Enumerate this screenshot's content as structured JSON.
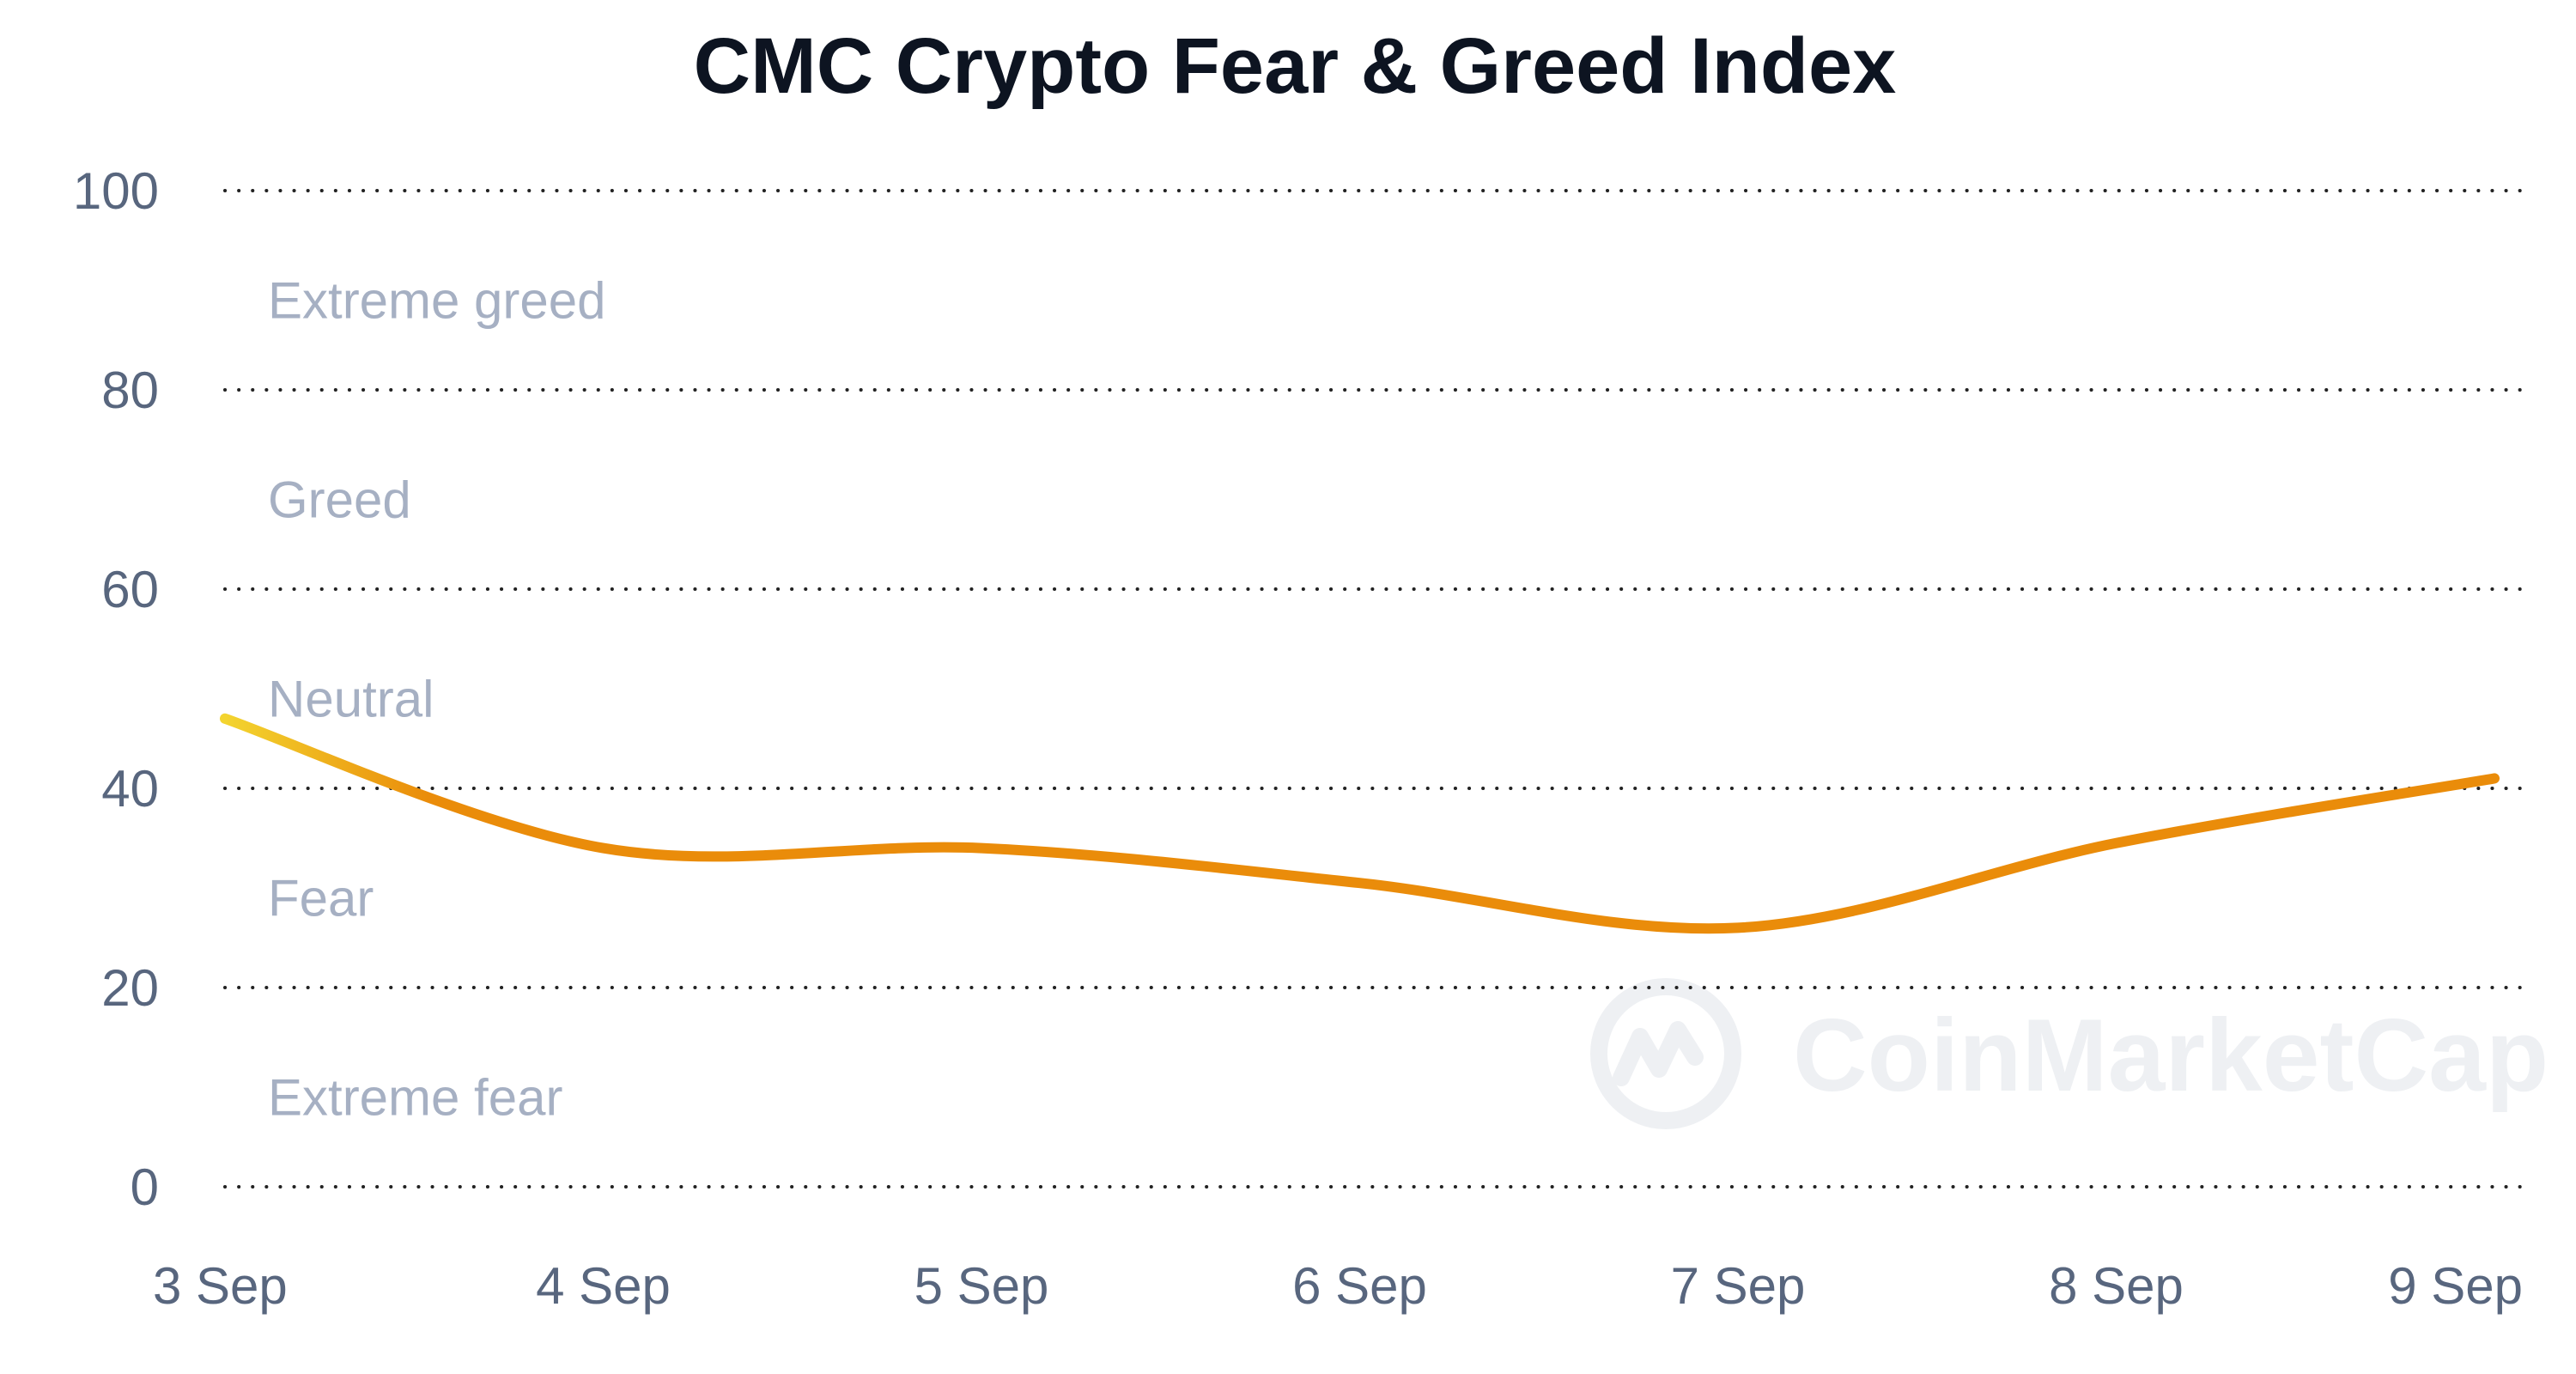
{
  "chart_data": {
    "type": "line",
    "title": "CMC Crypto Fear & Greed Index",
    "xlabel": "",
    "ylabel": "",
    "ylim": [
      0,
      100
    ],
    "y_ticks": [
      "100",
      "80",
      "60",
      "40",
      "20",
      "0"
    ],
    "y_tick_values": [
      100,
      80,
      60,
      40,
      20,
      0
    ],
    "x_ticks": [
      "3 Sep",
      "4 Sep",
      "5 Sep",
      "6 Sep",
      "7 Sep",
      "8 Sep",
      "9 Sep"
    ],
    "x_tick_values": [
      0,
      1,
      2,
      3,
      4,
      5,
      6
    ],
    "zones": [
      {
        "label": "Extreme greed",
        "y": 89
      },
      {
        "label": "Greed",
        "y": 69
      },
      {
        "label": "Neutral",
        "y": 49
      },
      {
        "label": "Fear",
        "y": 29
      },
      {
        "label": "Extreme fear",
        "y": 9
      }
    ],
    "grid": true,
    "series": [
      {
        "values": [
          {
            "x": 0,
            "y": 47
          },
          {
            "x": 1,
            "y": 34
          },
          {
            "x": 2,
            "y": 34
          },
          {
            "x": 3,
            "y": 30.5
          },
          {
            "x": 4,
            "y": 26
          },
          {
            "x": 5,
            "y": 34.5
          },
          {
            "x": 6,
            "y": 41
          }
        ]
      }
    ],
    "colors": {
      "line_start": "#f3d42f",
      "line_end": "#ea8c0a"
    }
  },
  "watermark": {
    "text": "CoinMarketCap",
    "icon": "coinmarketcap-logo-icon"
  }
}
